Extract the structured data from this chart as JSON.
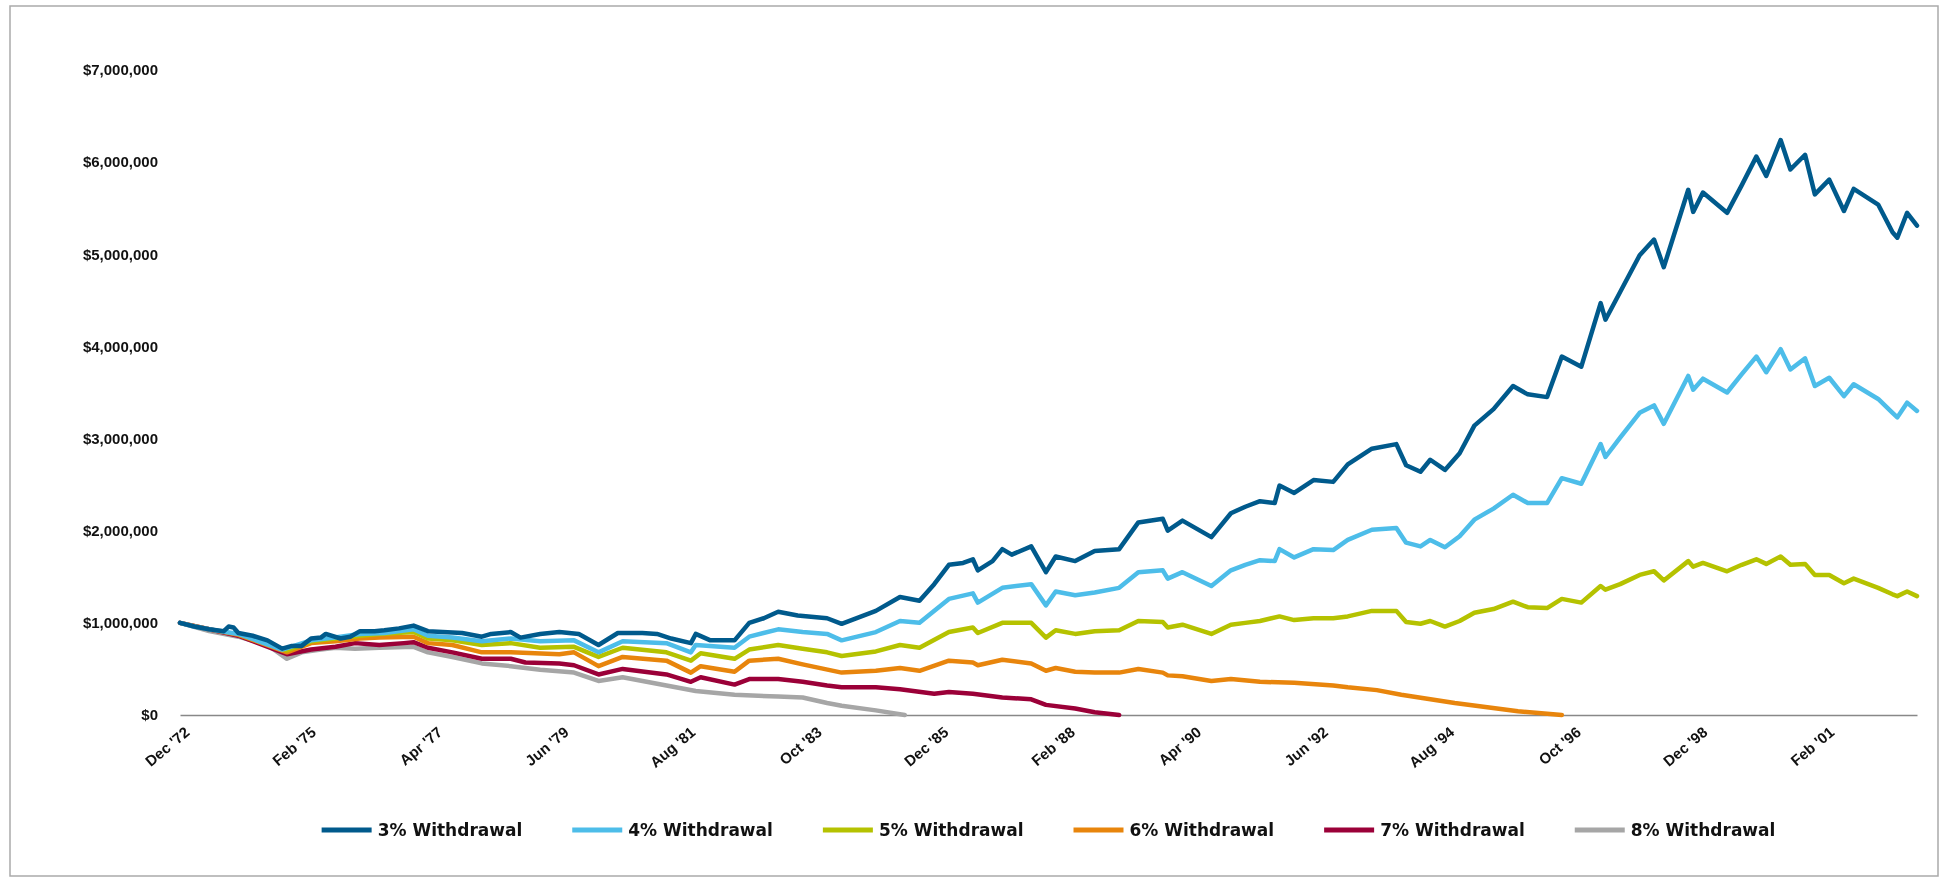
{
  "chart_data": {
    "type": "line",
    "xlim": [
      "1972-12",
      "2002-09"
    ],
    "ylim": [
      0,
      7000000
    ],
    "xticks": [
      {
        "value": "1972-12",
        "label": "Dec '72"
      },
      {
        "value": "1975-02",
        "label": "Feb '75"
      },
      {
        "value": "1977-04",
        "label": "Apr '77"
      },
      {
        "value": "1979-06",
        "label": "Jun '79"
      },
      {
        "value": "1981-08",
        "label": "Aug '81"
      },
      {
        "value": "1983-10",
        "label": "Oct '83"
      },
      {
        "value": "1985-12",
        "label": "Dec '85"
      },
      {
        "value": "1988-02",
        "label": "Feb '88"
      },
      {
        "value": "1990-04",
        "label": "Apr '90"
      },
      {
        "value": "1992-06",
        "label": "Jun '92"
      },
      {
        "value": "1994-08",
        "label": "Aug '94"
      },
      {
        "value": "1996-10",
        "label": "Oct '96"
      },
      {
        "value": "1998-12",
        "label": "Dec '98"
      },
      {
        "value": "2001-02",
        "label": "Feb '01"
      }
    ],
    "yticks": [
      {
        "value": 0,
        "label": "$0"
      },
      {
        "value": 1000000,
        "label": "$1,000,000"
      },
      {
        "value": 2000000,
        "label": "$2,000,000"
      },
      {
        "value": 3000000,
        "label": "$3,000,000"
      },
      {
        "value": 4000000,
        "label": "$4,000,000"
      },
      {
        "value": 5000000,
        "label": "$5,000,000"
      },
      {
        "value": 6000000,
        "label": "$6,000,000"
      },
      {
        "value": 7000000,
        "label": "$7,000,000"
      }
    ],
    "grid": false,
    "legend": "bottom",
    "marker": "none",
    "line_style": "solid",
    "series": [
      {
        "name": "3% Withdrawal",
        "color": "#005a8c",
        "x": [
          "1972-12",
          "1973-03",
          "1973-06",
          "1973-09",
          "1973-10",
          "1973-11",
          "1973-12",
          "1974-03",
          "1974-06",
          "1974-09",
          "1974-11",
          "1975-01",
          "1975-03",
          "1975-05",
          "1975-06",
          "1975-09",
          "1975-11",
          "1976-01",
          "1976-04",
          "1976-06",
          "1976-09",
          "1976-12",
          "1977-03",
          "1977-06",
          "1977-10",
          "1978-02",
          "1978-04",
          "1978-08",
          "1978-10",
          "1979-02",
          "1979-06",
          "1979-10",
          "1980-02",
          "1980-06",
          "1980-11",
          "1981-02",
          "1981-05",
          "1981-09",
          "1981-10",
          "1982-01",
          "1982-06",
          "1982-09",
          "1982-12",
          "1983-03",
          "1983-07",
          "1984-01",
          "1984-04",
          "1984-11",
          "1985-04",
          "1985-08",
          "1985-11",
          "1986-02",
          "1986-05",
          "1986-07",
          "1986-08",
          "1986-11",
          "1987-01",
          "1987-03",
          "1987-07",
          "1987-10",
          "1987-12",
          "1988-04",
          "1988-08",
          "1989-01",
          "1989-05",
          "1989-10",
          "1989-11",
          "1990-02",
          "1990-08",
          "1990-12",
          "1991-03",
          "1991-06",
          "1991-09",
          "1991-10",
          "1992-01",
          "1992-05",
          "1992-09",
          "1992-12",
          "1993-05",
          "1993-10",
          "1993-12",
          "1994-03",
          "1994-05",
          "1994-08",
          "1994-11",
          "1995-02",
          "1995-06",
          "1995-10",
          "1996-01",
          "1996-05",
          "1996-08",
          "1996-12",
          "1997-04",
          "1997-05",
          "1997-08",
          "1997-12",
          "1998-03",
          "1998-05",
          "1998-10",
          "1998-11",
          "1999-01",
          "1999-06",
          "1999-09",
          "1999-12",
          "2000-02",
          "2000-05",
          "2000-07",
          "2000-10",
          "2000-12",
          "2001-03",
          "2001-06",
          "2001-08",
          "2002-01",
          "2002-04",
          "2002-05",
          "2002-07",
          "2002-09"
        ],
        "values": [
          1000000,
          960000,
          930000,
          910000,
          960000,
          950000,
          890000,
          860000,
          810000,
          720000,
          750000,
          750000,
          830000,
          840000,
          880000,
          830000,
          850000,
          910000,
          910000,
          920000,
          940000,
          970000,
          910000,
          900000,
          890000,
          850000,
          880000,
          900000,
          840000,
          880000,
          900000,
          880000,
          760000,
          890000,
          890000,
          880000,
          830000,
          780000,
          880000,
          810000,
          810000,
          1000000,
          1050000,
          1120000,
          1080000,
          1050000,
          990000,
          1130000,
          1280000,
          1240000,
          1420000,
          1630000,
          1650000,
          1690000,
          1570000,
          1670000,
          1800000,
          1740000,
          1830000,
          1550000,
          1720000,
          1670000,
          1780000,
          1800000,
          2090000,
          2130000,
          2000000,
          2110000,
          1930000,
          2190000,
          2260000,
          2320000,
          2300000,
          2490000,
          2410000,
          2550000,
          2530000,
          2720000,
          2890000,
          2940000,
          2710000,
          2640000,
          2770000,
          2660000,
          2840000,
          3140000,
          3320000,
          3570000,
          3480000,
          3450000,
          3890000,
          3780000,
          4470000,
          4290000,
          4590000,
          4990000,
          5160000,
          4860000,
          5700000,
          5460000,
          5670000,
          5450000,
          5750000,
          6060000,
          5850000,
          6240000,
          5920000,
          6080000,
          5650000,
          5810000,
          5470000,
          5710000,
          5540000,
          5240000,
          5180000,
          5450000,
          5310000
        ]
      },
      {
        "name": "4% Withdrawal",
        "color": "#4dbde9",
        "x": [
          "1972-12",
          "1973-03",
          "1973-06",
          "1973-12",
          "1974-09",
          "1975-03",
          "1975-09",
          "1976-01",
          "1976-06",
          "1976-12",
          "1977-03",
          "1977-08",
          "1978-02",
          "1978-08",
          "1979-02",
          "1979-09",
          "1980-02",
          "1980-07",
          "1981-04",
          "1981-09",
          "1981-10",
          "1982-06",
          "1982-09",
          "1983-03",
          "1983-08",
          "1984-01",
          "1984-04",
          "1984-11",
          "1985-04",
          "1985-08",
          "1986-02",
          "1986-07",
          "1986-08",
          "1987-01",
          "1987-07",
          "1987-10",
          "1987-12",
          "1988-04",
          "1988-08",
          "1989-01",
          "1989-05",
          "1989-10",
          "1989-11",
          "1990-02",
          "1990-08",
          "1990-12",
          "1991-03",
          "1991-06",
          "1991-09",
          "1991-10",
          "1992-01",
          "1992-05",
          "1992-09",
          "1992-12",
          "1993-05",
          "1993-10",
          "1993-12",
          "1994-03",
          "1994-05",
          "1994-08",
          "1994-11",
          "1995-02",
          "1995-06",
          "1995-10",
          "1996-01",
          "1996-05",
          "1996-08",
          "1996-12",
          "1997-04",
          "1997-05",
          "1997-08",
          "1997-12",
          "1998-03",
          "1998-05",
          "1998-10",
          "1998-11",
          "1999-01",
          "1999-06",
          "1999-09",
          "1999-12",
          "2000-02",
          "2000-05",
          "2000-07",
          "2000-10",
          "2000-12",
          "2001-03",
          "2001-06",
          "2001-08",
          "2002-01",
          "2002-04",
          "2002-05",
          "2002-07",
          "2002-09"
        ],
        "values": [
          1000000,
          960000,
          930000,
          880000,
          710000,
          810000,
          850000,
          880000,
          890000,
          930000,
          860000,
          840000,
          800000,
          830000,
          800000,
          810000,
          680000,
          800000,
          780000,
          680000,
          760000,
          730000,
          850000,
          930000,
          900000,
          880000,
          810000,
          900000,
          1020000,
          1000000,
          1260000,
          1320000,
          1220000,
          1380000,
          1420000,
          1190000,
          1340000,
          1300000,
          1330000,
          1380000,
          1550000,
          1570000,
          1480000,
          1550000,
          1400000,
          1570000,
          1630000,
          1680000,
          1670000,
          1800000,
          1710000,
          1800000,
          1790000,
          1900000,
          2010000,
          2030000,
          1870000,
          1830000,
          1900000,
          1820000,
          1940000,
          2120000,
          2240000,
          2390000,
          2300000,
          2300000,
          2570000,
          2510000,
          2940000,
          2800000,
          3010000,
          3280000,
          3360000,
          3160000,
          3680000,
          3530000,
          3650000,
          3500000,
          3700000,
          3890000,
          3720000,
          3970000,
          3750000,
          3870000,
          3570000,
          3660000,
          3460000,
          3590000,
          3430000,
          3280000,
          3230000,
          3390000,
          3300000
        ]
      },
      {
        "name": "5% Withdrawal",
        "color": "#b5c200",
        "x": [
          "1973-12",
          "1974-10",
          "1975-03",
          "1975-08",
          "1976-01",
          "1976-05",
          "1976-12",
          "1977-03",
          "1977-08",
          "1978-02",
          "1978-08",
          "1979-02",
          "1979-09",
          "1980-02",
          "1980-07",
          "1981-04",
          "1981-09",
          "1981-11",
          "1982-06",
          "1982-09",
          "1983-03",
          "1983-08",
          "1984-01",
          "1984-04",
          "1984-11",
          "1985-04",
          "1985-08",
          "1986-02",
          "1986-07",
          "1986-08",
          "1987-01",
          "1987-07",
          "1987-10",
          "1987-12",
          "1988-04",
          "1988-08",
          "1989-01",
          "1989-05",
          "1989-10",
          "1989-11",
          "1990-02",
          "1990-08",
          "1990-12",
          "1991-03",
          "1991-06",
          "1991-10",
          "1992-01",
          "1992-05",
          "1992-09",
          "1992-12",
          "1993-05",
          "1993-10",
          "1993-12",
          "1994-03",
          "1994-05",
          "1994-08",
          "1994-11",
          "1995-02",
          "1995-06",
          "1995-10",
          "1996-01",
          "1996-05",
          "1996-08",
          "1996-12",
          "1997-04",
          "1997-05",
          "1997-08",
          "1997-12",
          "1998-03",
          "1998-05",
          "1998-10",
          "1998-11",
          "1999-01",
          "1999-06",
          "1999-09",
          "1999-12",
          "2000-02",
          "2000-05",
          "2000-07",
          "2000-10",
          "2000-12",
          "2001-03",
          "2001-06",
          "2001-08",
          "2002-01",
          "2002-04",
          "2002-05",
          "2002-07",
          "2002-09"
        ],
        "values": [
          880000,
          700000,
          800000,
          830000,
          860000,
          880000,
          900000,
          830000,
          810000,
          760000,
          780000,
          730000,
          740000,
          630000,
          730000,
          680000,
          590000,
          670000,
          610000,
          710000,
          760000,
          720000,
          680000,
          640000,
          690000,
          760000,
          730000,
          900000,
          950000,
          890000,
          1000000,
          1000000,
          840000,
          920000,
          880000,
          910000,
          920000,
          1020000,
          1010000,
          950000,
          980000,
          880000,
          980000,
          1000000,
          1020000,
          1070000,
          1030000,
          1050000,
          1050000,
          1070000,
          1130000,
          1130000,
          1010000,
          990000,
          1020000,
          960000,
          1020000,
          1110000,
          1150000,
          1230000,
          1170000,
          1160000,
          1260000,
          1220000,
          1400000,
          1360000,
          1420000,
          1520000,
          1560000,
          1460000,
          1670000,
          1610000,
          1650000,
          1560000,
          1630000,
          1690000,
          1640000,
          1720000,
          1630000,
          1640000,
          1520000,
          1520000,
          1430000,
          1480000,
          1380000,
          1310000,
          1290000,
          1340000,
          1290000
        ]
      },
      {
        "name": "6% Withdrawal",
        "color": "#e8850c",
        "x": [
          "1972-12",
          "1973-06",
          "1973-12",
          "1974-10",
          "1975-03",
          "1975-08",
          "1976-01",
          "1976-05",
          "1976-12",
          "1977-03",
          "1977-08",
          "1978-02",
          "1978-08",
          "1979-06",
          "1979-09",
          "1980-02",
          "1980-07",
          "1981-04",
          "1981-09",
          "1981-11",
          "1982-06",
          "1982-09",
          "1983-03",
          "1983-08",
          "1984-04",
          "1984-11",
          "1985-04",
          "1985-08",
          "1986-02",
          "1986-07",
          "1986-08",
          "1987-01",
          "1987-07",
          "1987-10",
          "1987-12",
          "1988-04",
          "1988-08",
          "1989-01",
          "1989-05",
          "1989-10",
          "1989-11",
          "1990-02",
          "1990-08",
          "1990-12",
          "1991-06",
          "1992-01",
          "1992-09",
          "1992-12",
          "1993-06",
          "1993-11",
          "1994-10",
          "1995-11",
          "1996-08"
        ],
        "values": [
          1000000,
          930000,
          870000,
          680000,
          780000,
          800000,
          830000,
          840000,
          850000,
          780000,
          760000,
          680000,
          680000,
          660000,
          680000,
          530000,
          630000,
          590000,
          460000,
          530000,
          470000,
          590000,
          610000,
          550000,
          460000,
          480000,
          510000,
          480000,
          590000,
          570000,
          540000,
          600000,
          560000,
          480000,
          510000,
          470000,
          460000,
          460000,
          500000,
          460000,
          430000,
          420000,
          370000,
          390000,
          360000,
          350000,
          320000,
          300000,
          270000,
          220000,
          130000,
          40000,
          0
        ]
      },
      {
        "name": "7% Withdrawal",
        "color": "#9b0038",
        "x": [
          "1972-12",
          "1973-06",
          "1973-12",
          "1974-10",
          "1975-03",
          "1975-08",
          "1975-12",
          "1976-05",
          "1976-10",
          "1976-12",
          "1977-03",
          "1977-08",
          "1978-02",
          "1978-08",
          "1978-11",
          "1979-06",
          "1979-09",
          "1980-02",
          "1980-07",
          "1981-04",
          "1981-09",
          "1981-11",
          "1982-06",
          "1982-09",
          "1983-03",
          "1983-08",
          "1984-01",
          "1984-04",
          "1984-11",
          "1985-04",
          "1985-11",
          "1986-02",
          "1986-07",
          "1987-01",
          "1987-07",
          "1987-10",
          "1988-04",
          "1988-08",
          "1989-01"
        ],
        "values": [
          1000000,
          930000,
          860000,
          660000,
          710000,
          740000,
          780000,
          760000,
          780000,
          790000,
          730000,
          680000,
          610000,
          610000,
          570000,
          560000,
          540000,
          440000,
          500000,
          440000,
          360000,
          410000,
          330000,
          390000,
          390000,
          360000,
          320000,
          300000,
          300000,
          280000,
          230000,
          250000,
          230000,
          190000,
          170000,
          110000,
          70000,
          30000,
          0
        ]
      },
      {
        "name": "8% Withdrawal",
        "color": "#a6a6a6",
        "x": [
          "1972-12",
          "1973-06",
          "1973-12",
          "1974-06",
          "1974-10",
          "1975-01",
          "1975-05",
          "1975-08",
          "1975-12",
          "1976-05",
          "1976-12",
          "1977-03",
          "1977-08",
          "1978-02",
          "1978-08",
          "1979-02",
          "1979-09",
          "1980-02",
          "1980-07",
          "1981-04",
          "1981-10",
          "1982-06",
          "1983-03",
          "1983-08",
          "1984-01",
          "1984-04",
          "1984-11",
          "1985-05"
        ],
        "values": [
          1000000,
          910000,
          850000,
          760000,
          610000,
          680000,
          710000,
          730000,
          720000,
          730000,
          740000,
          680000,
          630000,
          560000,
          530000,
          490000,
          460000,
          370000,
          410000,
          320000,
          260000,
          220000,
          200000,
          190000,
          130000,
          100000,
          50000,
          0
        ]
      }
    ]
  }
}
